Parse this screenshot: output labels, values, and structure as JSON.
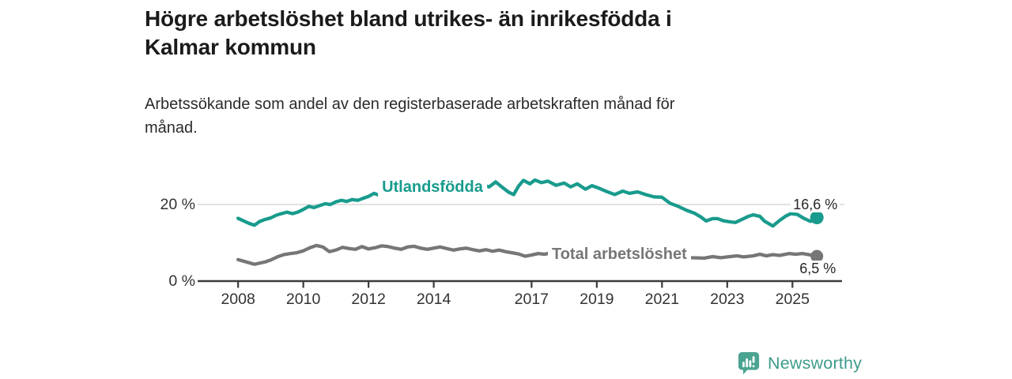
{
  "header": {
    "title_line1": "Högre arbetslöshet bland utrikes- än inrikesfödda i",
    "title_line2": "Kalmar kommun",
    "subtitle_line1": "Arbetssökande som andel av den registerbaserade arbetskraften månad för",
    "subtitle_line2": "månad."
  },
  "branding": {
    "name": "Newsworthy",
    "icon_color": "#4AA390",
    "text_color": "#3F9C8B"
  },
  "chart_data": {
    "type": "line",
    "title": "Högre arbetslöshet bland utrikes- än inrikesfödda i Kalmar kommun",
    "subtitle": "Arbetssökande som andel av den registerbaserade arbetskraften månad för månad.",
    "unit": "%",
    "grid": "horizontal-only",
    "legend_position": "inline-labels",
    "axis": {
      "x_range": [
        2006.76,
        2026.52
      ],
      "y_range": [
        0,
        29.07
      ],
      "y_gridlines": [
        20
      ],
      "x_ticks": [
        {
          "label": "2008",
          "value": 2008
        },
        {
          "label": "2010",
          "value": 2010
        },
        {
          "label": "2012",
          "value": 2012
        },
        {
          "label": "2014",
          "value": 2014
        },
        {
          "label": "2017",
          "value": 2017
        },
        {
          "label": "2019",
          "value": 2019
        },
        {
          "label": "2021",
          "value": 2021
        },
        {
          "label": "2023",
          "value": 2023
        },
        {
          "label": "2025",
          "value": 2025
        }
      ],
      "y_ticks": [
        {
          "label": "0 %",
          "value": 0
        },
        {
          "label": "20 %",
          "value": 20
        }
      ]
    },
    "series": [
      {
        "name": "Utlandsfödda",
        "color": "#189B8D",
        "end_label": "16,6 %",
        "end_value": 16.6,
        "end_label_position": "above",
        "label_anchor": {
          "x": 2013.96,
          "y": 24.54,
          "align": "center"
        },
        "points": [
          [
            2008.0,
            16.4
          ],
          [
            2008.17,
            15.7
          ],
          [
            2008.33,
            15.1
          ],
          [
            2008.5,
            14.6
          ],
          [
            2008.67,
            15.6
          ],
          [
            2008.83,
            16.1
          ],
          [
            2009.0,
            16.5
          ],
          [
            2009.17,
            17.2
          ],
          [
            2009.33,
            17.6
          ],
          [
            2009.5,
            18.0
          ],
          [
            2009.67,
            17.6
          ],
          [
            2009.83,
            18.0
          ],
          [
            2010.0,
            18.7
          ],
          [
            2010.17,
            19.5
          ],
          [
            2010.33,
            19.2
          ],
          [
            2010.5,
            19.7
          ],
          [
            2010.67,
            20.2
          ],
          [
            2010.83,
            20.0
          ],
          [
            2011.0,
            20.7
          ],
          [
            2011.17,
            21.1
          ],
          [
            2011.33,
            20.8
          ],
          [
            2011.5,
            21.3
          ],
          [
            2011.67,
            21.1
          ],
          [
            2011.83,
            21.6
          ],
          [
            2012.0,
            22.1
          ],
          [
            2012.17,
            22.9
          ],
          [
            2012.33,
            22.4
          ],
          [
            2012.5,
            22.7
          ],
          [
            2012.67,
            23.1
          ],
          [
            2012.83,
            22.8
          ],
          [
            2013.0,
            23.2
          ],
          [
            2013.25,
            23.0
          ],
          [
            2013.5,
            23.4
          ],
          [
            2013.75,
            23.6
          ],
          [
            2014.0,
            23.9
          ],
          [
            2014.25,
            23.7
          ],
          [
            2014.5,
            24.1
          ],
          [
            2014.75,
            24.4
          ],
          [
            2015.0,
            24.2
          ],
          [
            2015.25,
            24.6
          ],
          [
            2015.5,
            25.1
          ],
          [
            2015.7,
            24.6
          ],
          [
            2015.9,
            25.9
          ],
          [
            2016.1,
            24.5
          ],
          [
            2016.3,
            23.2
          ],
          [
            2016.45,
            22.6
          ],
          [
            2016.6,
            24.8
          ],
          [
            2016.75,
            26.3
          ],
          [
            2016.95,
            25.4
          ],
          [
            2017.1,
            26.4
          ],
          [
            2017.3,
            25.7
          ],
          [
            2017.5,
            26.1
          ],
          [
            2017.75,
            25.0
          ],
          [
            2018.0,
            25.6
          ],
          [
            2018.2,
            24.6
          ],
          [
            2018.4,
            25.4
          ],
          [
            2018.65,
            24.0
          ],
          [
            2018.85,
            24.9
          ],
          [
            2019.05,
            24.3
          ],
          [
            2019.3,
            23.4
          ],
          [
            2019.55,
            22.6
          ],
          [
            2019.8,
            23.5
          ],
          [
            2020.0,
            22.9
          ],
          [
            2020.25,
            23.3
          ],
          [
            2020.5,
            22.6
          ],
          [
            2020.75,
            22.0
          ],
          [
            2021.0,
            21.9
          ],
          [
            2021.25,
            20.3
          ],
          [
            2021.5,
            19.5
          ],
          [
            2021.75,
            18.5
          ],
          [
            2022.0,
            17.7
          ],
          [
            2022.2,
            16.7
          ],
          [
            2022.35,
            15.7
          ],
          [
            2022.55,
            16.3
          ],
          [
            2022.7,
            16.3
          ],
          [
            2022.9,
            15.7
          ],
          [
            2023.05,
            15.5
          ],
          [
            2023.25,
            15.3
          ],
          [
            2023.5,
            16.3
          ],
          [
            2023.65,
            16.9
          ],
          [
            2023.8,
            17.3
          ],
          [
            2024.0,
            16.9
          ],
          [
            2024.15,
            15.6
          ],
          [
            2024.4,
            14.4
          ],
          [
            2024.6,
            15.8
          ],
          [
            2024.8,
            17.0
          ],
          [
            2024.95,
            17.6
          ],
          [
            2025.15,
            17.4
          ],
          [
            2025.35,
            16.4
          ],
          [
            2025.55,
            15.6
          ],
          [
            2025.67,
            15.9
          ],
          [
            2025.75,
            16.6
          ]
        ]
      },
      {
        "name": "Total arbetslöshet",
        "color": "#767676",
        "end_label": "6,5 %",
        "end_value": 6.5,
        "end_label_position": "below",
        "label_anchor": {
          "x": 2017.5,
          "y": 6.91,
          "align": "left"
        },
        "points": [
          [
            2008.0,
            5.6
          ],
          [
            2008.17,
            5.2
          ],
          [
            2008.33,
            4.8
          ],
          [
            2008.5,
            4.4
          ],
          [
            2008.67,
            4.7
          ],
          [
            2008.83,
            5.0
          ],
          [
            2009.0,
            5.5
          ],
          [
            2009.2,
            6.3
          ],
          [
            2009.4,
            6.9
          ],
          [
            2009.6,
            7.2
          ],
          [
            2009.8,
            7.4
          ],
          [
            2010.0,
            7.9
          ],
          [
            2010.2,
            8.7
          ],
          [
            2010.4,
            9.3
          ],
          [
            2010.6,
            8.9
          ],
          [
            2010.8,
            7.7
          ],
          [
            2011.0,
            8.1
          ],
          [
            2011.2,
            8.8
          ],
          [
            2011.4,
            8.5
          ],
          [
            2011.6,
            8.3
          ],
          [
            2011.8,
            9.0
          ],
          [
            2012.0,
            8.4
          ],
          [
            2012.2,
            8.7
          ],
          [
            2012.4,
            9.2
          ],
          [
            2012.6,
            9.0
          ],
          [
            2012.8,
            8.6
          ],
          [
            2013.0,
            8.3
          ],
          [
            2013.2,
            8.9
          ],
          [
            2013.4,
            9.1
          ],
          [
            2013.6,
            8.6
          ],
          [
            2013.8,
            8.3
          ],
          [
            2014.0,
            8.6
          ],
          [
            2014.2,
            8.9
          ],
          [
            2014.4,
            8.5
          ],
          [
            2014.6,
            8.1
          ],
          [
            2014.8,
            8.4
          ],
          [
            2015.0,
            8.6
          ],
          [
            2015.2,
            8.2
          ],
          [
            2015.4,
            7.9
          ],
          [
            2015.6,
            8.2
          ],
          [
            2015.8,
            7.8
          ],
          [
            2016.0,
            8.1
          ],
          [
            2016.2,
            7.7
          ],
          [
            2016.4,
            7.4
          ],
          [
            2016.6,
            7.1
          ],
          [
            2016.8,
            6.5
          ],
          [
            2017.0,
            6.8
          ],
          [
            2017.2,
            7.2
          ],
          [
            2017.4,
            7.0
          ],
          [
            2017.55,
            7.3
          ],
          [
            2018.0,
            7.1
          ],
          [
            2018.5,
            6.9
          ],
          [
            2019.0,
            6.7
          ],
          [
            2019.5,
            6.5
          ],
          [
            2020.0,
            6.8
          ],
          [
            2020.5,
            7.0
          ],
          [
            2021.0,
            6.6
          ],
          [
            2021.5,
            6.3
          ],
          [
            2021.9,
            6.1
          ],
          [
            2022.3,
            6.0
          ],
          [
            2022.55,
            6.4
          ],
          [
            2022.8,
            6.1
          ],
          [
            2023.0,
            6.3
          ],
          [
            2023.3,
            6.6
          ],
          [
            2023.5,
            6.3
          ],
          [
            2023.8,
            6.6
          ],
          [
            2024.0,
            7.0
          ],
          [
            2024.2,
            6.6
          ],
          [
            2024.4,
            6.9
          ],
          [
            2024.6,
            6.7
          ],
          [
            2024.9,
            7.2
          ],
          [
            2025.1,
            7.0
          ],
          [
            2025.3,
            7.2
          ],
          [
            2025.5,
            6.9
          ],
          [
            2025.75,
            6.5
          ]
        ]
      }
    ]
  }
}
